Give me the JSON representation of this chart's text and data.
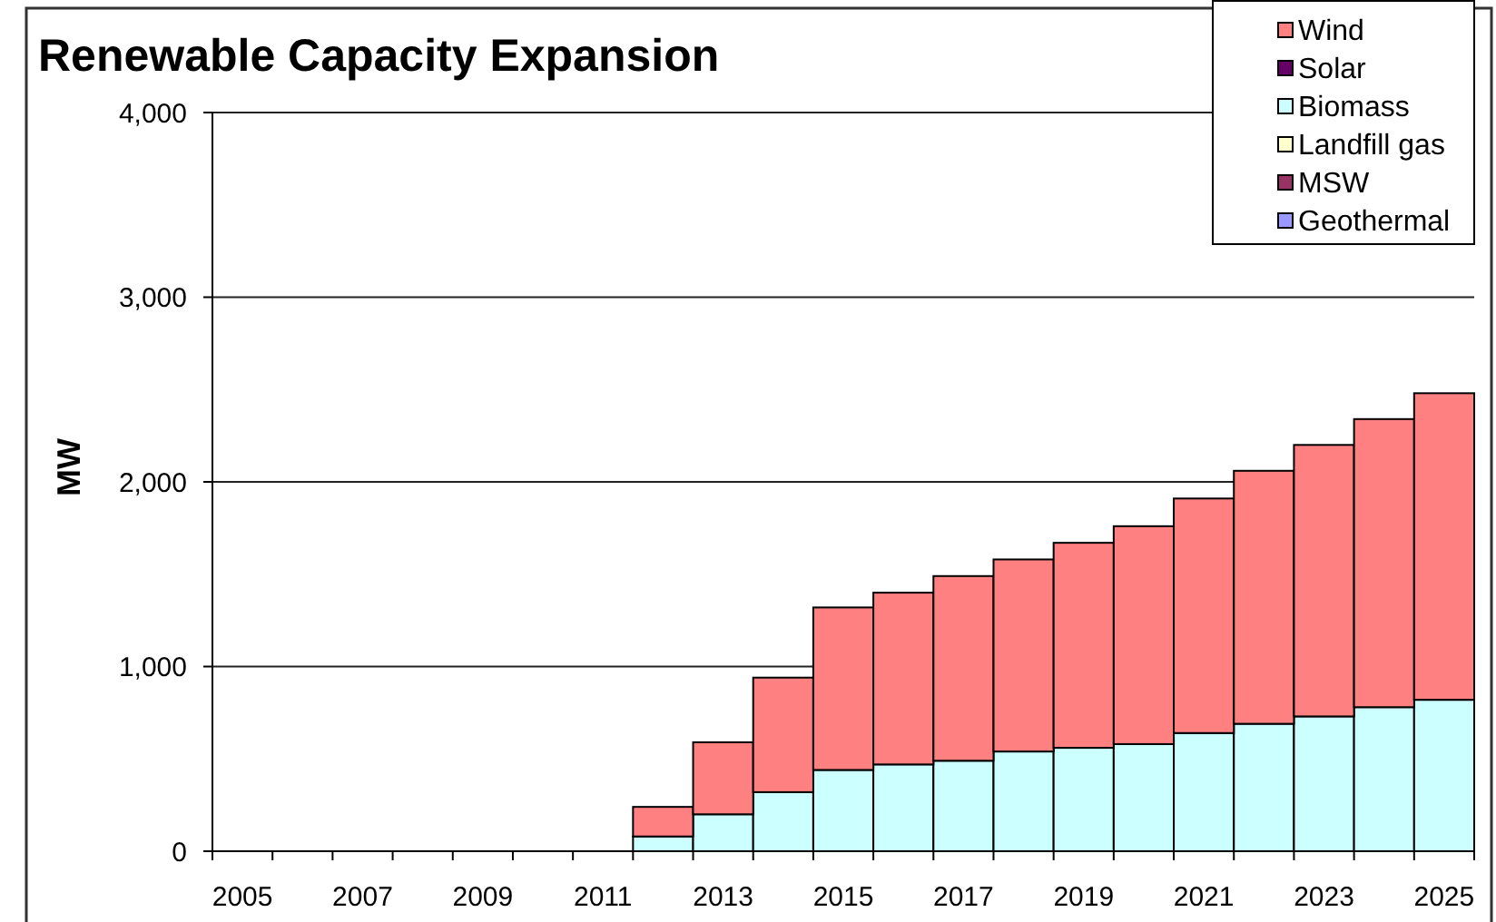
{
  "chart_data": {
    "type": "bar",
    "title": "Renewable Capacity Expansion",
    "ylabel": "MW",
    "categories": [
      "2005",
      null,
      "2007",
      null,
      "2009",
      null,
      "2011",
      null,
      "2013",
      null,
      "2015",
      null,
      "2017",
      null,
      "2019",
      null,
      "2021",
      null,
      "2023",
      null,
      "2025"
    ],
    "stacked": true,
    "series": [
      {
        "name": "Geothermal",
        "color": "#9999ff",
        "values": [
          0,
          0,
          0,
          0,
          0,
          0,
          0,
          0,
          0,
          0,
          0,
          0,
          0,
          0,
          0,
          0,
          0,
          0,
          0,
          0,
          0
        ]
      },
      {
        "name": "MSW",
        "color": "#993366",
        "values": [
          0,
          0,
          0,
          0,
          0,
          0,
          0,
          0,
          0,
          0,
          0,
          0,
          0,
          0,
          0,
          0,
          0,
          0,
          0,
          0,
          0
        ]
      },
      {
        "name": "Landfill gas",
        "color": "#ffffcc",
        "values": [
          0,
          0,
          0,
          0,
          0,
          0,
          0,
          0,
          0,
          0,
          0,
          0,
          0,
          0,
          0,
          0,
          0,
          0,
          0,
          0,
          0
        ]
      },
      {
        "name": "Biomass",
        "color": "#ccffff",
        "values": [
          0,
          0,
          0,
          0,
          0,
          0,
          0,
          80,
          200,
          320,
          440,
          470,
          490,
          540,
          560,
          580,
          640,
          690,
          730,
          780,
          820
        ]
      },
      {
        "name": "Solar",
        "color": "#660066",
        "values": [
          0,
          0,
          0,
          0,
          0,
          0,
          0,
          0,
          0,
          0,
          0,
          0,
          0,
          0,
          0,
          0,
          0,
          0,
          0,
          0,
          0
        ]
      },
      {
        "name": "Wind",
        "color": "#ff8080",
        "values": [
          0,
          0,
          0,
          0,
          0,
          0,
          0,
          160,
          390,
          620,
          880,
          930,
          1000,
          1040,
          1110,
          1180,
          1270,
          1370,
          1470,
          1560,
          1660
        ]
      }
    ],
    "ylim": [
      0,
      4000
    ],
    "yticks": [
      0,
      {
        "value": 1000,
        "label": "1,000"
      },
      {
        "value": 2000,
        "label": "2,000"
      },
      {
        "value": 3000,
        "label": "3,000"
      },
      {
        "value": 4000,
        "label": "4,000"
      }
    ],
    "grid": "y",
    "legend": "top right"
  }
}
